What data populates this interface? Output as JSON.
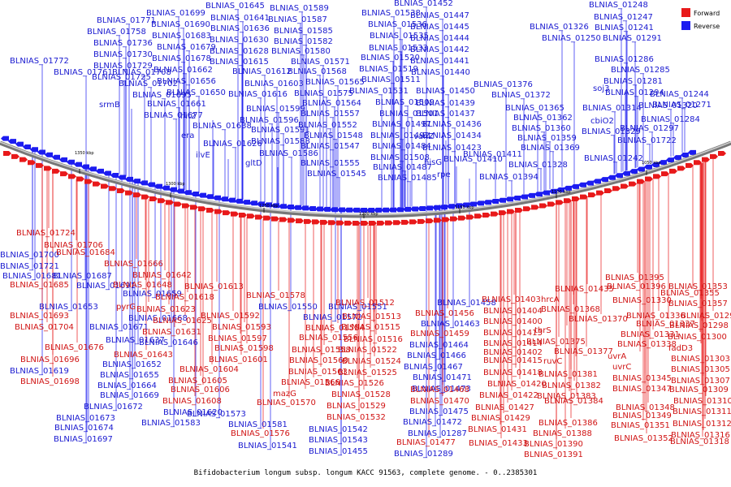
{
  "legend": {
    "forward_label": "Forward",
    "reverse_label": "Reverse",
    "forward_color": "#e8191a",
    "reverse_color": "#1c1cf0"
  },
  "caption": "Bifidobacterium longum subsp. longum KACC 91563, complete genome. - 0..2385301",
  "backbone_ticks": [
    "1350 kbp",
    "1300 kbp",
    "1250 kbp",
    "1200 kbp",
    "1150 kbp",
    "1100 kbp",
    "1050 kbp"
  ],
  "reverse_labels": [
    "BLNIAS_01771",
    "BLNIAS_01758",
    "BLNIAS_01736",
    "BLNIAS_01730",
    "BLNIAS_01729",
    "BLNIAS_01725",
    "BLNIAS_01772",
    "BLNIAS_01761",
    "BLNIAS_01708",
    "BLNIAS_01702",
    "BLNIAS_01695",
    "BLNIAS_01699",
    "BLNIAS_01690",
    "BLNIAS_01683",
    "BLNIAS_01679",
    "BLNIAS_01678",
    "BLNIAS_01662",
    "BLNIAS_01656",
    "BLNIAS_01650",
    "BLNIAS_01661",
    "BLNIAS_01677",
    "srmB",
    "hit2",
    "BLNIAS_01638",
    "era",
    "BLNIAS_01626",
    "ilvE",
    "BLNIAS_01645",
    "BLNIAS_01641",
    "BLNIAS_01636",
    "BLNIAS_01630",
    "BLNIAS_01628",
    "BLNIAS_01615",
    "BLNIAS_01612",
    "BLNIAS_01603",
    "BLNIAS_01616",
    "BLNIAS_01599",
    "BLNIAS_01596",
    "BLNIAS_01591",
    "BLNIAS_01588",
    "BLNIAS_01586",
    "gltD",
    "BLNIAS_01589",
    "BLNIAS_01587",
    "BLNIAS_01585",
    "BLNIAS_01582",
    "BLNIAS_01580",
    "BLNIAS_01571",
    "BLNIAS_01568",
    "BLNIAS_01565",
    "BLNIAS_01575",
    "BLNIAS_01564",
    "BLNIAS_01557",
    "BLNIAS_01552",
    "BLNIAS_01548",
    "BLNIAS_01547",
    "BLNIAS_01555",
    "BLNIAS_01545",
    "BLNIAS_01538",
    "BLNIAS_01536",
    "BLNIAS_01535",
    "BLNIAS_01533",
    "BLNIAS_01520",
    "BLNIAS_01519",
    "BLNIAS_01511",
    "BLNIAS_01531",
    "BLNIAS_01509",
    "BLNIAS_01501",
    "BLNIAS_01497",
    "BLNIAS_01492",
    "BLNIAS_01484",
    "BLNIAS_01508",
    "BLNIAS_01487",
    "BLNIAS_01485",
    "BLNIAS_01452",
    "BLNIAS_01447",
    "BLNIAS_01445",
    "BLNIAS_01444",
    "BLNIAS_01442",
    "BLNIAS_01441",
    "BLNIAS_01440",
    "BLNIAS_01450",
    "BLNIAS_01439",
    "BLNIAS_01437",
    "BLNIAS_01436",
    "BLNIAS_01434",
    "BLNIAS_01423",
    "vanZ",
    "hisG",
    "rpe",
    "BLNIAS_01410",
    "BLNIAS_01411",
    "BLNIAS_01394",
    "BLNIAS_01376",
    "BLNIAS_01372",
    "BLNIAS_01365",
    "BLNIAS_01362",
    "BLNIAS_01360",
    "BLNIAS_01359",
    "BLNIAS_01369",
    "BLNIAS_01328",
    "BLNIAS_01326",
    "BLNIAS_01250",
    "BLNIAS_01248",
    "BLNIAS_01247",
    "BLNIAS_01241",
    "BLNIAS_01291",
    "BLNIAS_01286",
    "BLNIAS_01285",
    "BLNIAS_01281",
    "BLNIAS_01294",
    "soj3",
    "BLNIAS_01320",
    "BLNIAS_01314",
    "cbiO2",
    "BLNIAS_01329",
    "BLNIAS_01242",
    "BLNIAS_01244",
    "BLNIAS_01271",
    "BLNIAS_01284",
    "BLNIAS_01297",
    "BLNIAS_01722",
    "BLNIAS_01700",
    "BLNIAS_01721",
    "BLNIAS_01681",
    "BLNIAS_01687",
    "BLNIAS_01691",
    "BLNIAS_01653",
    "BLNIAS_01659",
    "BLNIAS_01668",
    "BLNIAS_01671",
    "BLNIAS_01637",
    "BLNIAS_01646",
    "BLNIAS_01652",
    "BLNIAS_01655",
    "BLNIAS_01664",
    "BLNIAS_01669",
    "BLNIAS_01672",
    "BLNIAS_01673",
    "BLNIAS_01674",
    "BLNIAS_01697",
    "BLNIAS_01619",
    "BLNIAS_01620",
    "BLNIAS_01583",
    "BLNIAS_01550",
    "BLNIAS_01551",
    "BLNIAS_01572",
    "BLNIAS_01573",
    "BLNIAS_01581",
    "BLNIAS_01541",
    "BLNIAS_01542",
    "BLNIAS_01543",
    "BLNIAS_01455",
    "BLNIAS_01458",
    "BLNIAS_01463",
    "BLNIAS_01464",
    "BLNIAS_01466",
    "BLNIAS_01467",
    "BLNIAS_01471",
    "BLNIAS_01473",
    "BLNIAS_01475",
    "BLNIAS_01472",
    "BLNIAS_01287",
    "BLNIAS_01289"
  ],
  "forward_labels": [
    "BLNIAS_01724",
    "BLNIAS_01706",
    "BLNIAS_01684",
    "BLNIAS_01666",
    "BLNIAS_01642",
    "BLNIAS_01685",
    "BLNIAS_01648",
    "pyrG",
    "BLNIAS_01613",
    "BLNIAS_01618",
    "BLNIAS_01623",
    "BLNIAS_01693",
    "BLNIAS_01625",
    "BLNIAS_01704",
    "BLNIAS_01631",
    "BLNIAS_01676",
    "BLNIAS_01643",
    "BLNIAS_01696",
    "BLNIAS_01698",
    "BLNIAS_01578",
    "BLNIAS_01592",
    "BLNIAS_01593",
    "BLNIAS_01597",
    "BLNIAS_01598",
    "BLNIAS_01601",
    "BLNIAS_01604",
    "BLNIAS_01605",
    "BLNIAS_01606",
    "BLNIAS_01608",
    "mazG",
    "BLNIAS_01570",
    "BLNIAS_01576",
    "BLNIAS_01554",
    "BLNIAS_01556",
    "BLNIAS_01558",
    "BLNIAS_01560",
    "BLNIAS_01563",
    "BLNIAS_01566",
    "BLNIAS_01512",
    "BLNIAS_01513",
    "BLNIAS_01515",
    "BLNIAS_01516",
    "BLNIAS_01522",
    "BLNIAS_01524",
    "BLNIAS_01525",
    "BLNIAS_01526",
    "BLNIAS_01528",
    "BLNIAS_01529",
    "BLNIAS_01532",
    "BLNIAS_01456",
    "BLNIAS_01459",
    "BLNIAS_01468",
    "BLNIAS_01470",
    "BLNIAS_01477",
    "BLNIAS_01403",
    "BLNIAS_01404",
    "BLNIAS_01400",
    "BLNIAS_01413",
    "BLNIAS_01414",
    "BLNIAS_01402",
    "BLNIAS_01415",
    "BLNIAS_01418",
    "BLNIAS_01420",
    "BLNIAS_01422",
    "BLNIAS_01427",
    "BLNIAS_01429",
    "BLNIAS_01431",
    "BLNIAS_01433",
    "BLNIAS_01435",
    "hrcA",
    "BLNIAS_01368",
    "BLNIAS_01370",
    "thrS",
    "BLNIAS_01375",
    "BLNIAS_01377",
    "ruvC",
    "BLNIAS_01381",
    "BLNIAS_01382",
    "BLNIAS_01383",
    "BLNIAS_01384",
    "BLNIAS_01386",
    "BLNIAS_01388",
    "BLNIAS_01390",
    "BLNIAS_01391",
    "BLNIAS_01395",
    "BLNIAS_01396",
    "BLNIAS_01330",
    "BLNIAS_01336",
    "BLNIAS_01337",
    "BLNIAS_01331",
    "BLNIAS_01338",
    "uvrA",
    "uvrC",
    "BLNIAS_01345",
    "BLNIAS_01347",
    "BLNIAS_01348",
    "BLNIAS_01349",
    "BLNIAS_01351",
    "BLNIAS_01352",
    "BLNIAS_01353",
    "BLNIAS_01355",
    "BLNIAS_01357",
    "BLNIAS_01293",
    "BLNIAS_01298",
    "BLNIAS_01300",
    "fadD3",
    "BLNIAS_01303",
    "BLNIAS_01305",
    "BLNIAS_01307",
    "BLNIAS_01309",
    "BLNIAS_01310",
    "BLNIAS_01311",
    "BLNIAS_01312",
    "BLNIAS_01316",
    "BLNIAS_01318",
    "BLNIAS_01322",
    "BLNIAS_01324",
    "BLNIAS_01325"
  ]
}
